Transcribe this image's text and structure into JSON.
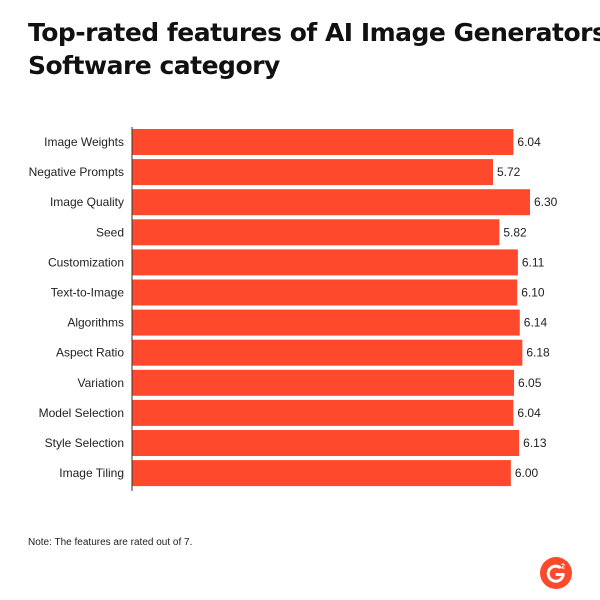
{
  "title_line1": "Top-rated features of AI Image Generators",
  "title_line2": "Software category",
  "note": "Note: The features are rated out of 7.",
  "logo": {
    "text": "G",
    "superscript": "2",
    "color": "#FF492C",
    "icon": "g2-logo"
  },
  "bar_color": "#FF492C",
  "chart_data": {
    "type": "bar",
    "orientation": "horizontal",
    "title": "Top-rated features of AI Image Generators Software category",
    "categories": [
      "Image Weights",
      "Negative Prompts",
      "Image Quality",
      "Seed",
      "Customization",
      "Text-to-Image",
      "Algorithms",
      "Aspect Ratio",
      "Variation",
      "Model Selection",
      "Style Selection",
      "Image Tiling"
    ],
    "values": [
      6.04,
      5.72,
      6.3,
      5.82,
      6.11,
      6.1,
      6.14,
      6.18,
      6.05,
      6.04,
      6.13,
      6.0
    ],
    "value_labels": [
      "6.04",
      "5.72",
      "6.30",
      "5.82",
      "6.11",
      "6.10",
      "6.14",
      "6.18",
      "6.05",
      "6.04",
      "6.13",
      "6.00"
    ],
    "xlim": [
      0,
      7
    ],
    "xlabel": "",
    "ylabel": "",
    "grid": false,
    "legend": "none"
  }
}
